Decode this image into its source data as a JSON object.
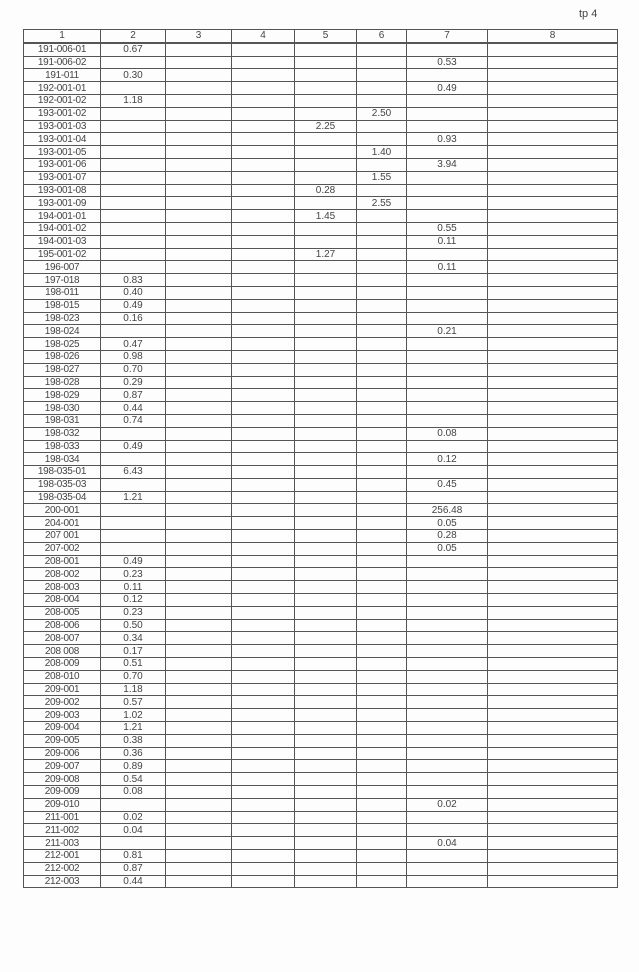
{
  "page_label": "tp 4",
  "columns": [
    "1",
    "2",
    "3",
    "4",
    "5",
    "6",
    "7",
    "8"
  ],
  "rows": [
    [
      "191-006-01",
      "0.67",
      "",
      "",
      "",
      "",
      "",
      ""
    ],
    [
      "191-006-02",
      "",
      "",
      "",
      "",
      "",
      "0.53",
      ""
    ],
    [
      "191-011",
      "0.30",
      "",
      "",
      "",
      "",
      "",
      ""
    ],
    [
      "192-001-01",
      "",
      "",
      "",
      "",
      "",
      "0.49",
      ""
    ],
    [
      "192-001-02",
      "1.18",
      "",
      "",
      "",
      "",
      "",
      ""
    ],
    [
      "193-001-02",
      "",
      "",
      "",
      "",
      "2.50",
      "",
      ""
    ],
    [
      "193-001-03",
      "",
      "",
      "",
      "2.25",
      "",
      "",
      ""
    ],
    [
      "193-001-04",
      "",
      "",
      "",
      "",
      "",
      "0.93",
      ""
    ],
    [
      "193-001-05",
      "",
      "",
      "",
      "",
      "1.40",
      "",
      ""
    ],
    [
      "193-001-06",
      "",
      "",
      "",
      "",
      "",
      "3.94",
      ""
    ],
    [
      "193-001-07",
      "",
      "",
      "",
      "",
      "1.55",
      "",
      ""
    ],
    [
      "193-001-08",
      "",
      "",
      "",
      "0.28",
      "",
      "",
      ""
    ],
    [
      "193-001-09",
      "",
      "",
      "",
      "",
      "2.55",
      "",
      ""
    ],
    [
      "194-001-01",
      "",
      "",
      "",
      "1.45",
      "",
      "",
      ""
    ],
    [
      "194-001-02",
      "",
      "",
      "",
      "",
      "",
      "0.55",
      ""
    ],
    [
      "194-001-03",
      "",
      "",
      "",
      "",
      "",
      "0.11",
      ""
    ],
    [
      "195-001-02",
      "",
      "",
      "",
      "1.27",
      "",
      "",
      ""
    ],
    [
      "196-007",
      "",
      "",
      "",
      "",
      "",
      "0.11",
      ""
    ],
    [
      "197-018",
      "0.83",
      "",
      "",
      "",
      "",
      "",
      ""
    ],
    [
      "198-011",
      "0.40",
      "",
      "",
      "",
      "",
      "",
      ""
    ],
    [
      "198-015",
      "0.49",
      "",
      "",
      "",
      "",
      "",
      ""
    ],
    [
      "198-023",
      "0.16",
      "",
      "",
      "",
      "",
      "",
      ""
    ],
    [
      "198-024",
      "",
      "",
      "",
      "",
      "",
      "0.21",
      ""
    ],
    [
      "198-025",
      "0.47",
      "",
      "",
      "",
      "",
      "",
      ""
    ],
    [
      "198-026",
      "0.98",
      "",
      "",
      "",
      "",
      "",
      ""
    ],
    [
      "198-027",
      "0.70",
      "",
      "",
      "",
      "",
      "",
      ""
    ],
    [
      "198-028",
      "0.29",
      "",
      "",
      "",
      "",
      "",
      ""
    ],
    [
      "198-029",
      "0.87",
      "",
      "",
      "",
      "",
      "",
      ""
    ],
    [
      "198-030",
      "0.44",
      "",
      "",
      "",
      "",
      "",
      ""
    ],
    [
      "198-031",
      "0.74",
      "",
      "",
      "",
      "",
      "",
      ""
    ],
    [
      "198-032",
      "",
      "",
      "",
      "",
      "",
      "0.08",
      ""
    ],
    [
      "198-033",
      "0.49",
      "",
      "",
      "",
      "",
      "",
      ""
    ],
    [
      "198-034",
      "",
      "",
      "",
      "",
      "",
      "0.12",
      ""
    ],
    [
      "198-035-01",
      "6.43",
      "",
      "",
      "",
      "",
      "",
      ""
    ],
    [
      "198-035-03",
      "",
      "",
      "",
      "",
      "",
      "0.45",
      ""
    ],
    [
      "198-035-04",
      "1.21",
      "",
      "",
      "",
      "",
      "",
      ""
    ],
    [
      "200-001",
      "",
      "",
      "",
      "",
      "",
      "256.48",
      ""
    ],
    [
      "204-001",
      "",
      "",
      "",
      "",
      "",
      "0.05",
      ""
    ],
    [
      "207 001",
      "",
      "",
      "",
      "",
      "",
      "0.28",
      ""
    ],
    [
      "207-002",
      "",
      "",
      "",
      "",
      "",
      "0.05",
      ""
    ],
    [
      "208-001",
      "0.49",
      "",
      "",
      "",
      "",
      "",
      ""
    ],
    [
      "208-002",
      "0.23",
      "",
      "",
      "",
      "",
      "",
      ""
    ],
    [
      "208-003",
      "0.11",
      "",
      "",
      "",
      "",
      "",
      ""
    ],
    [
      "208-004",
      "0.12",
      "",
      "",
      "",
      "",
      "",
      ""
    ],
    [
      "208-005",
      "0.23",
      "",
      "",
      "",
      "",
      "",
      ""
    ],
    [
      "208-006",
      "0.50",
      "",
      "",
      "",
      "",
      "",
      ""
    ],
    [
      "208-007",
      "0.34",
      "",
      "",
      "",
      "",
      "",
      ""
    ],
    [
      "208 008",
      "0.17",
      "",
      "",
      "",
      "",
      "",
      ""
    ],
    [
      "208-009",
      "0.51",
      "",
      "",
      "",
      "",
      "",
      ""
    ],
    [
      "208-010",
      "0.70",
      "",
      "",
      "",
      "",
      "",
      ""
    ],
    [
      "209-001",
      "1.18",
      "",
      "",
      "",
      "",
      "",
      ""
    ],
    [
      "209-002",
      "0.57",
      "",
      "",
      "",
      "",
      "",
      ""
    ],
    [
      "209-003",
      "1.02",
      "",
      "",
      "",
      "",
      "",
      ""
    ],
    [
      "209-004",
      "1.21",
      "",
      "",
      "",
      "",
      "",
      ""
    ],
    [
      "209-005",
      "0.38",
      "",
      "",
      "",
      "",
      "",
      ""
    ],
    [
      "209-006",
      "0.36",
      "",
      "",
      "",
      "",
      "",
      ""
    ],
    [
      "209-007",
      "0.89",
      "",
      "",
      "",
      "",
      "",
      ""
    ],
    [
      "209-008",
      "0.54",
      "",
      "",
      "",
      "",
      "",
      ""
    ],
    [
      "209-009",
      "0.08",
      "",
      "",
      "",
      "",
      "",
      ""
    ],
    [
      "209-010",
      "",
      "",
      "",
      "",
      "",
      "0.02",
      ""
    ],
    [
      "211-001",
      "0.02",
      "",
      "",
      "",
      "",
      "",
      ""
    ],
    [
      "211-002",
      "0.04",
      "",
      "",
      "",
      "",
      "",
      ""
    ],
    [
      "211-003",
      "",
      "",
      "",
      "",
      "",
      "0.04",
      ""
    ],
    [
      "212-001",
      "0.81",
      "",
      "",
      "",
      "",
      "",
      ""
    ],
    [
      "212-002",
      "0.87",
      "",
      "",
      "",
      "",
      "",
      ""
    ],
    [
      "212-003",
      "0.44",
      "",
      "",
      "",
      "",
      "",
      ""
    ]
  ]
}
